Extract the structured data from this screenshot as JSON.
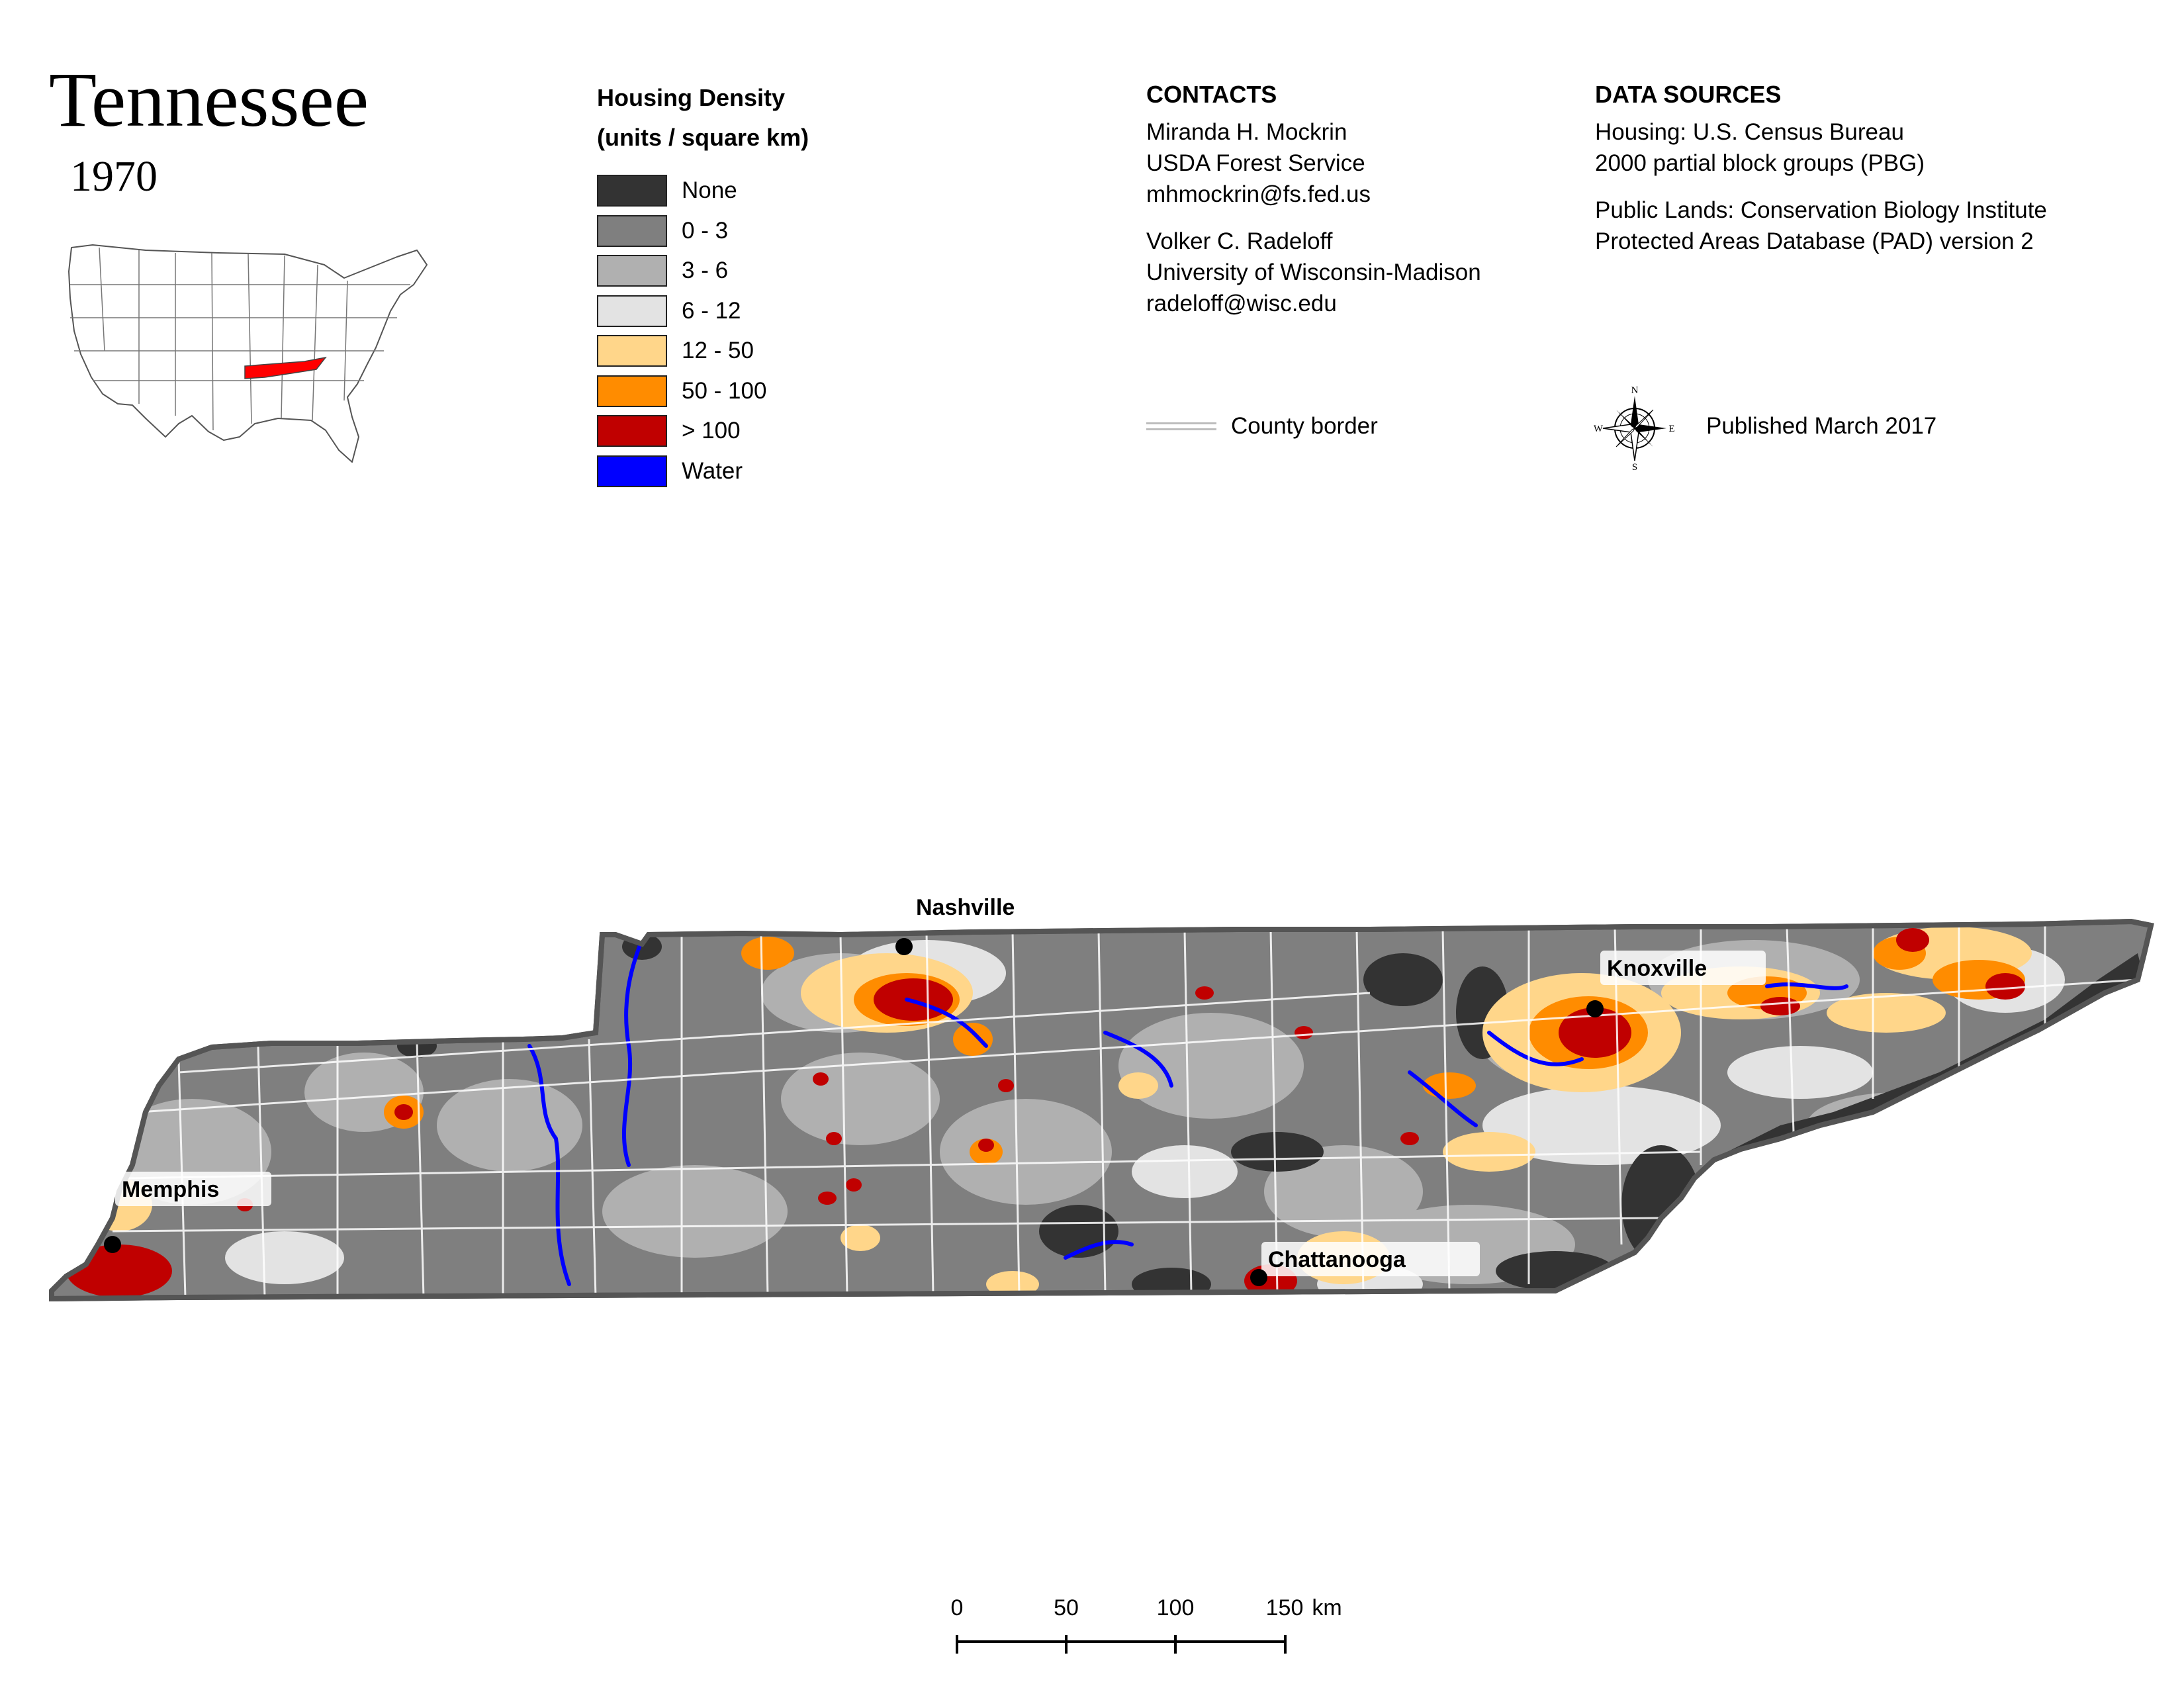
{
  "header": {
    "title": "Tennessee",
    "year": "1970"
  },
  "legend": {
    "title_line1": "Housing Density",
    "title_line2": "(units / square km)",
    "items": [
      {
        "label": "None",
        "color": "#333333"
      },
      {
        "label": "0 - 3",
        "color": "#7f7f7f"
      },
      {
        "label": "3 - 6",
        "color": "#b0b0b0"
      },
      {
        "label": "6 - 12",
        "color": "#e3e3e3"
      },
      {
        "label": "12 - 50",
        "color": "#ffd68a"
      },
      {
        "label": "50 - 100",
        "color": "#ff8c00"
      },
      {
        "label": "> 100",
        "color": "#c00000"
      },
      {
        "label": "Water",
        "color": "#0000ff"
      }
    ]
  },
  "contacts": {
    "heading": "CONTACTS",
    "people": [
      {
        "name": "Miranda H. Mockrin",
        "org": "USDA Forest Service",
        "email": "mhmockrin@fs.fed.us"
      },
      {
        "name": "Volker C. Radeloff",
        "org": "University of Wisconsin-Madison",
        "email": "radeloff@wisc.edu"
      }
    ]
  },
  "county_border_label": "County border",
  "data_sources": {
    "heading": "DATA SOURCES",
    "housing_line1": "Housing: U.S. Census Bureau",
    "housing_line2": "2000 partial block groups (PBG)",
    "public_lands_line1": "Public Lands: Conservation Biology Institute",
    "public_lands_line2": "Protected Areas Database (PAD) version 2"
  },
  "compass": {
    "n": "N",
    "s": "S",
    "e": "E",
    "w": "W"
  },
  "published": "Published March 2017",
  "cities": [
    {
      "label": "Nashville"
    },
    {
      "label": "Knoxville"
    },
    {
      "label": "Memphis"
    },
    {
      "label": "Chattanooga"
    }
  ],
  "scale_bar": {
    "labels": [
      "0",
      "50",
      "100",
      "150"
    ],
    "unit": "km"
  },
  "inset_map": {
    "highlight_state": "Tennessee",
    "highlight_color": "#ff0000"
  }
}
